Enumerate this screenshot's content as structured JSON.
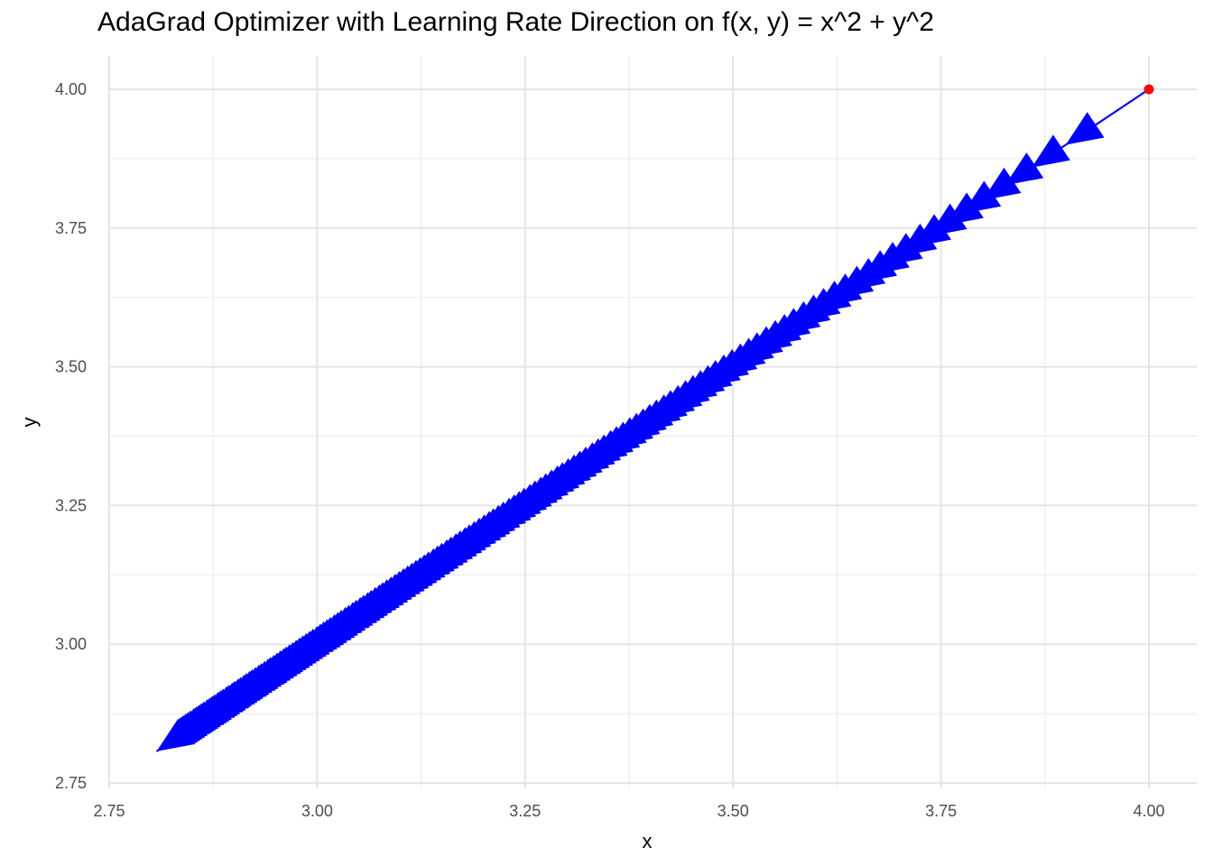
{
  "chart_data": {
    "type": "line",
    "title": "AdaGrad Optimizer with Learning Rate Direction on f(x, y) = x^2 + y^2",
    "xlabel": "x",
    "ylabel": "y",
    "xlim": [
      2.75,
      4.0
    ],
    "ylim": [
      2.75,
      4.0
    ],
    "x_ticks": [
      "2.75",
      "3.00",
      "3.25",
      "3.50",
      "3.75",
      "4.00"
    ],
    "y_ticks": [
      "2.75",
      "3.00",
      "3.25",
      "3.50",
      "3.75",
      "4.00"
    ],
    "grid": true,
    "start_point": {
      "x": 4.0,
      "y": 4.0,
      "color": "#ff0000"
    },
    "series": [
      {
        "style": "path-with-arrows",
        "path_color": "#000000",
        "arrow_color": "#0000ff",
        "x": [
          4.0,
          3.9,
          3.859,
          3.827,
          3.8,
          3.776,
          3.755,
          3.735,
          3.716,
          3.699,
          3.682,
          3.666,
          3.651,
          3.637,
          3.623,
          3.609,
          3.596,
          3.583,
          3.571,
          3.559,
          3.547,
          3.536,
          3.525,
          3.514,
          3.503,
          3.493,
          3.483,
          3.473,
          3.463,
          3.453,
          3.444,
          3.435,
          3.426,
          3.417,
          3.408,
          3.399,
          3.391,
          3.382,
          3.374,
          3.366,
          3.358,
          3.35,
          3.342,
          3.334,
          3.327,
          3.319,
          3.312,
          3.305,
          3.297,
          3.29,
          3.283,
          3.276,
          3.269,
          3.263,
          3.256,
          3.249,
          3.243,
          3.236,
          3.23,
          3.223,
          3.217,
          3.211,
          3.205,
          3.198,
          3.192,
          3.186,
          3.181,
          3.175,
          3.169,
          3.163,
          3.157,
          3.152,
          3.146,
          3.141,
          3.135,
          3.13,
          3.124,
          3.119,
          3.114,
          3.108,
          3.103,
          3.098,
          3.093,
          3.088,
          3.083,
          3.078,
          3.073,
          3.068,
          3.063,
          3.058,
          3.053,
          3.049,
          3.044,
          3.039,
          3.035,
          3.03,
          3.026,
          3.021,
          3.017,
          3.012,
          3.008,
          3.003,
          2.999,
          2.995,
          2.99,
          2.986,
          2.982,
          2.978,
          2.974,
          2.969,
          2.965,
          2.961,
          2.957,
          2.953,
          2.949,
          2.945,
          2.941,
          2.937,
          2.934,
          2.93,
          2.926,
          2.922,
          2.918,
          2.915,
          2.911,
          2.907,
          2.904,
          2.9,
          2.896,
          2.893,
          2.889,
          2.886,
          2.882,
          2.879,
          2.875,
          2.872,
          2.868,
          2.865,
          2.861,
          2.858,
          2.855,
          2.851,
          2.848,
          2.845,
          2.842,
          2.838,
          2.835,
          2.832,
          2.829,
          2.826,
          2.822,
          2.819,
          2.816,
          2.813,
          2.81,
          2.807
        ],
        "y": [
          4.0,
          3.9,
          3.859,
          3.827,
          3.8,
          3.776,
          3.755,
          3.735,
          3.716,
          3.699,
          3.682,
          3.666,
          3.651,
          3.637,
          3.623,
          3.609,
          3.596,
          3.583,
          3.571,
          3.559,
          3.547,
          3.536,
          3.525,
          3.514,
          3.503,
          3.493,
          3.483,
          3.473,
          3.463,
          3.453,
          3.444,
          3.435,
          3.426,
          3.417,
          3.408,
          3.399,
          3.391,
          3.382,
          3.374,
          3.366,
          3.358,
          3.35,
          3.342,
          3.334,
          3.327,
          3.319,
          3.312,
          3.305,
          3.297,
          3.29,
          3.283,
          3.276,
          3.269,
          3.263,
          3.256,
          3.249,
          3.243,
          3.236,
          3.23,
          3.223,
          3.217,
          3.211,
          3.205,
          3.198,
          3.192,
          3.186,
          3.181,
          3.175,
          3.169,
          3.163,
          3.157,
          3.152,
          3.146,
          3.141,
          3.135,
          3.13,
          3.124,
          3.119,
          3.114,
          3.108,
          3.103,
          3.098,
          3.093,
          3.088,
          3.083,
          3.078,
          3.073,
          3.068,
          3.063,
          3.058,
          3.053,
          3.049,
          3.044,
          3.039,
          3.035,
          3.03,
          3.026,
          3.021,
          3.017,
          3.012,
          3.008,
          3.003,
          2.999,
          2.995,
          2.99,
          2.986,
          2.982,
          2.978,
          2.974,
          2.969,
          2.965,
          2.961,
          2.957,
          2.953,
          2.949,
          2.945,
          2.941,
          2.937,
          2.934,
          2.93,
          2.926,
          2.922,
          2.918,
          2.915,
          2.911,
          2.907,
          2.904,
          2.9,
          2.896,
          2.893,
          2.889,
          2.886,
          2.882,
          2.879,
          2.875,
          2.872,
          2.868,
          2.865,
          2.861,
          2.858,
          2.855,
          2.851,
          2.848,
          2.845,
          2.842,
          2.838,
          2.835,
          2.832,
          2.829,
          2.826,
          2.822,
          2.819,
          2.816,
          2.813,
          2.81,
          2.807
        ]
      }
    ]
  }
}
